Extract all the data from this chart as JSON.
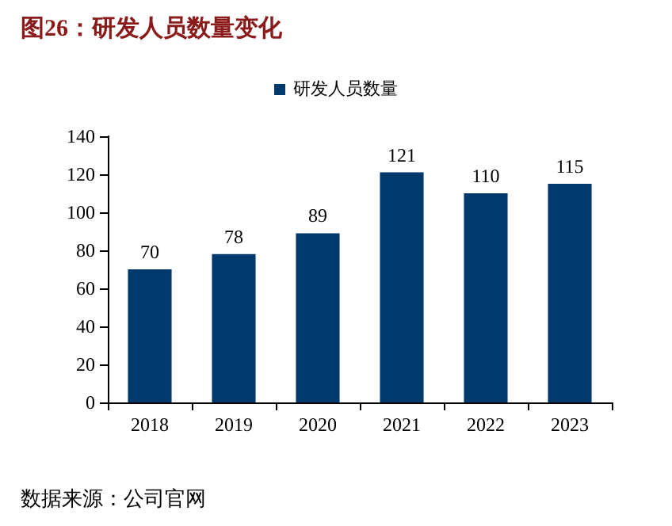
{
  "chart_data": {
    "type": "bar",
    "title": "图26：研发人员数量变化",
    "categories": [
      "2018",
      "2019",
      "2020",
      "2021",
      "2022",
      "2023"
    ],
    "series": [
      {
        "name": "研发人员数量",
        "color": "#003a6c",
        "values": [
          70,
          78,
          89,
          121,
          110,
          115
        ]
      }
    ],
    "ylim": [
      0,
      140
    ],
    "yticks": [
      0,
      20,
      40,
      60,
      80,
      100,
      120,
      140
    ],
    "grid": false,
    "legend": "top",
    "data_labels": true,
    "annotations": [
      "数据来源：公司官网"
    ]
  }
}
